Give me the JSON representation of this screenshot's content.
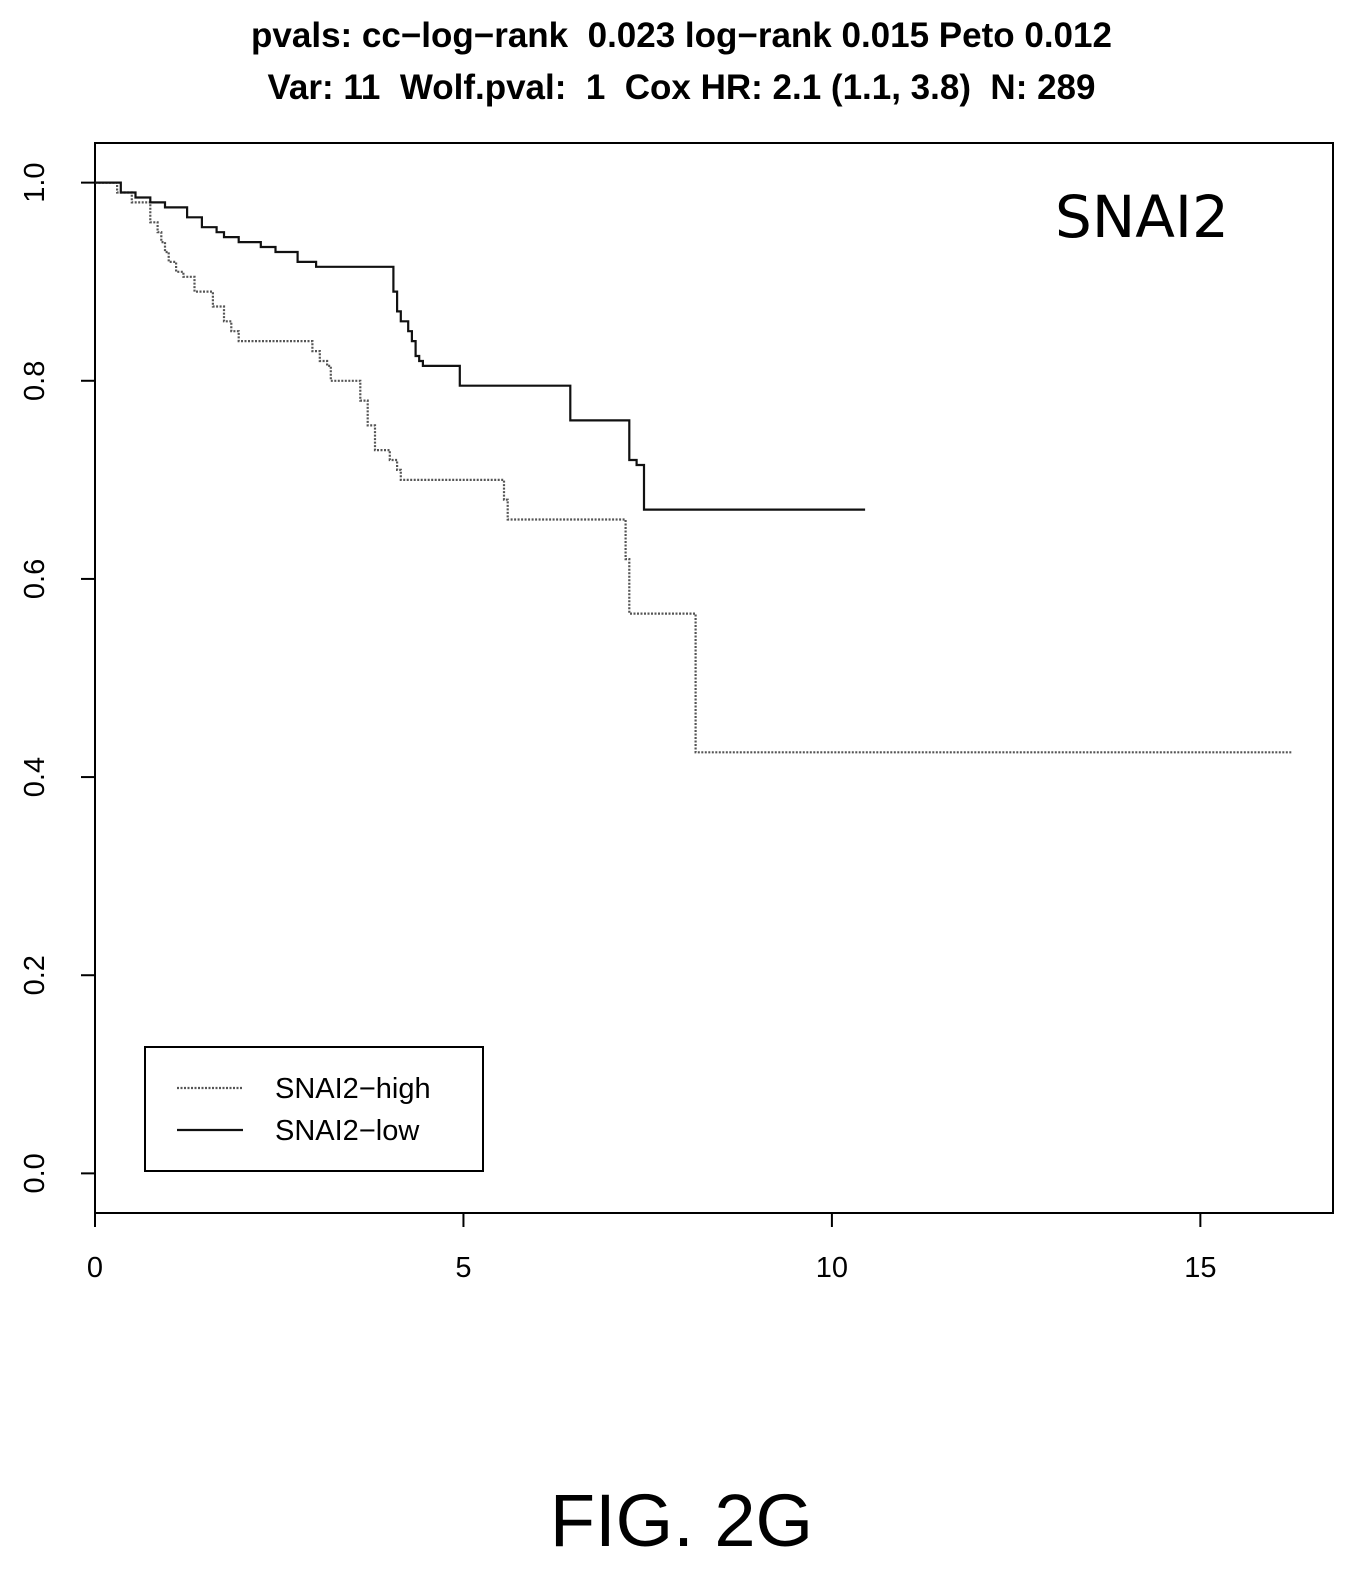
{
  "title_line1": "pvals: cc−log−rank  0.023 log−rank 0.015 Peto 0.012",
  "title_line2": "Var: 11  Wolf.pval:  1  Cox HR: 2.1 (1.1, 3.8)  N: 289",
  "figure_label": "FIG. 2G",
  "chart_data": {
    "type": "line",
    "title": "",
    "annotation": "SNAI2",
    "xlabel": "",
    "ylabel": "",
    "xlim": [
      0,
      16.8
    ],
    "ylim": [
      -0.04,
      1.04
    ],
    "x_ticks": [
      0,
      5,
      10,
      15
    ],
    "y_ticks": [
      0.0,
      0.2,
      0.4,
      0.6,
      0.8,
      1.0
    ],
    "x_tick_labels": [
      "0",
      "5",
      "10",
      "15"
    ],
    "y_tick_labels": [
      "0.0",
      "0.2",
      "0.4",
      "0.6",
      "0.8",
      "1.0"
    ],
    "grid": false,
    "step": true,
    "legend_position": "bottom-left",
    "series": [
      {
        "name": "SNAI2−high",
        "color": "#555555",
        "dash": "2,1.5",
        "x": [
          0,
          0.3,
          0.5,
          0.75,
          0.85,
          0.9,
          0.95,
          1.0,
          1.1,
          1.2,
          1.35,
          1.6,
          1.75,
          1.85,
          1.95,
          2.1,
          2.95,
          3.05,
          3.15,
          3.2,
          3.6,
          3.7,
          3.8,
          4.0,
          4.1,
          4.15,
          5.45,
          5.55,
          5.6,
          7.15,
          7.2,
          7.25,
          8.1,
          8.15,
          16.25
        ],
        "y": [
          1.0,
          0.99,
          0.98,
          0.96,
          0.95,
          0.94,
          0.93,
          0.92,
          0.91,
          0.905,
          0.89,
          0.875,
          0.86,
          0.85,
          0.84,
          0.84,
          0.83,
          0.82,
          0.815,
          0.8,
          0.78,
          0.755,
          0.73,
          0.72,
          0.71,
          0.7,
          0.7,
          0.68,
          0.66,
          0.66,
          0.62,
          0.565,
          0.565,
          0.425,
          0.425
        ]
      },
      {
        "name": "SNAI2−low",
        "color": "#111111",
        "dash": "",
        "x": [
          0,
          0.35,
          0.55,
          0.75,
          0.95,
          1.25,
          1.45,
          1.65,
          1.75,
          1.95,
          2.25,
          2.45,
          2.75,
          3.0,
          4.0,
          4.05,
          4.1,
          4.15,
          4.25,
          4.3,
          4.35,
          4.4,
          4.45,
          4.85,
          4.95,
          6.15,
          6.45,
          6.55,
          7.15,
          7.25,
          7.35,
          7.45,
          10.45
        ],
        "y": [
          1.0,
          0.99,
          0.985,
          0.98,
          0.975,
          0.965,
          0.955,
          0.95,
          0.945,
          0.94,
          0.935,
          0.93,
          0.92,
          0.915,
          0.915,
          0.89,
          0.87,
          0.86,
          0.85,
          0.84,
          0.825,
          0.82,
          0.815,
          0.815,
          0.795,
          0.795,
          0.76,
          0.76,
          0.76,
          0.72,
          0.715,
          0.67,
          0.67
        ]
      }
    ]
  }
}
